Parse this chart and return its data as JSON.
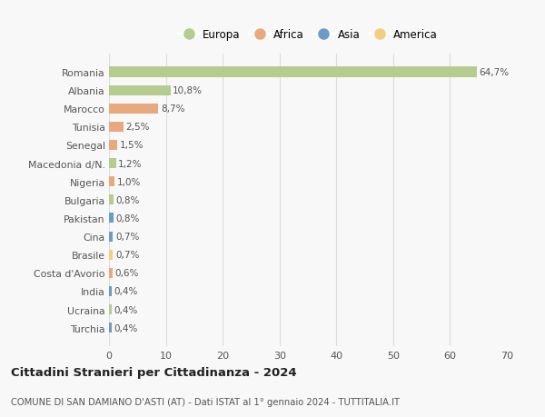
{
  "countries": [
    "Romania",
    "Albania",
    "Marocco",
    "Tunisia",
    "Senegal",
    "Macedonia d/N.",
    "Nigeria",
    "Bulgaria",
    "Pakistan",
    "Cina",
    "Brasile",
    "Costa d'Avorio",
    "India",
    "Ucraina",
    "Turchia"
  ],
  "values": [
    64.7,
    10.8,
    8.7,
    2.5,
    1.5,
    1.2,
    1.0,
    0.8,
    0.8,
    0.7,
    0.7,
    0.6,
    0.4,
    0.4,
    0.4
  ],
  "labels": [
    "64,7%",
    "10,8%",
    "8,7%",
    "2,5%",
    "1,5%",
    "1,2%",
    "1,0%",
    "0,8%",
    "0,8%",
    "0,7%",
    "0,7%",
    "0,6%",
    "0,4%",
    "0,4%",
    "0,4%"
  ],
  "continents": [
    "Europa",
    "Europa",
    "Africa",
    "Africa",
    "Africa",
    "Europa",
    "Africa",
    "Europa",
    "Asia",
    "Asia",
    "America",
    "Africa",
    "Asia",
    "Europa",
    "Asia"
  ],
  "colors": {
    "Europa": "#b5cc8e",
    "Africa": "#e8a97e",
    "Asia": "#6b9bc8",
    "America": "#f0d080"
  },
  "legend_order": [
    "Europa",
    "Africa",
    "Asia",
    "America"
  ],
  "xlim": [
    0,
    70
  ],
  "xticks": [
    0,
    10,
    20,
    30,
    40,
    50,
    60,
    70
  ],
  "title": "Cittadini Stranieri per Cittadinanza - 2024",
  "subtitle": "COMUNE DI SAN DAMIANO D'ASTI (AT) - Dati ISTAT al 1° gennaio 2024 - TUTTITALIA.IT",
  "background_color": "#f8f8f8",
  "grid_color": "#dddddd",
  "bar_height": 0.55
}
